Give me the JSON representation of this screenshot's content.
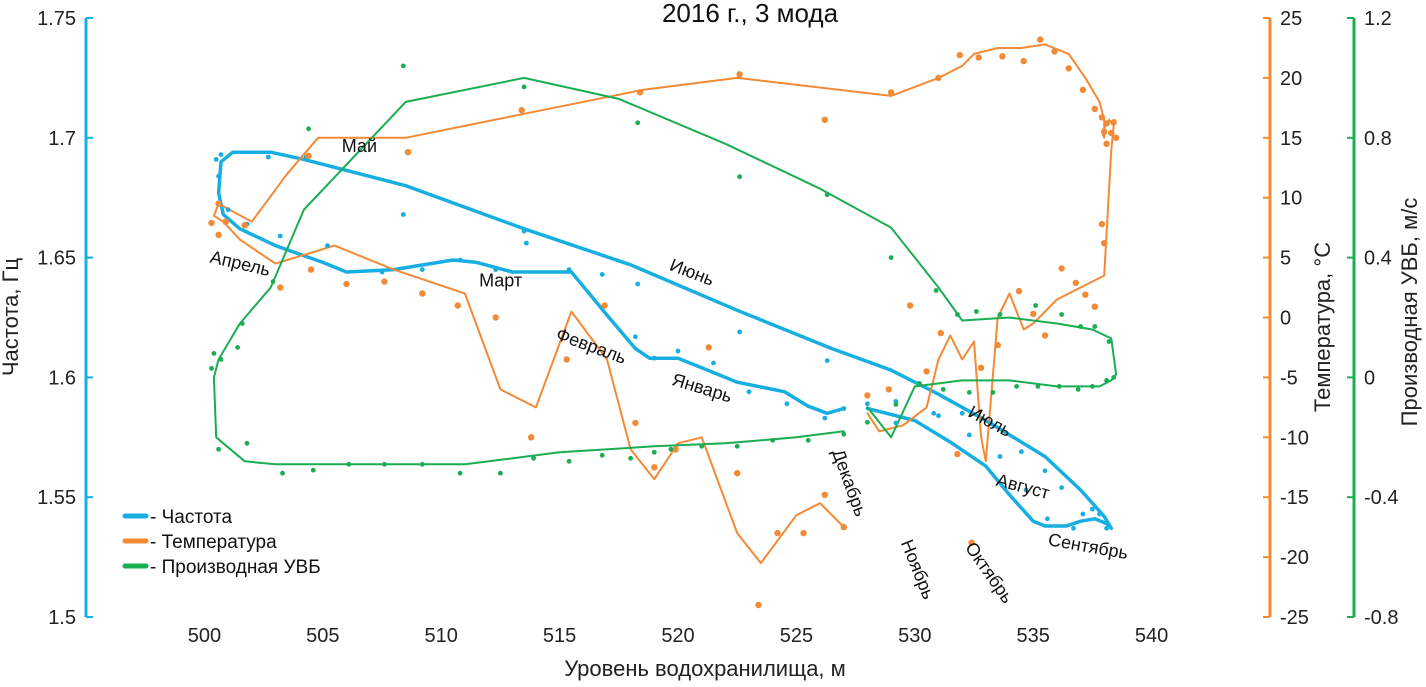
{
  "chart_data": {
    "type": "line",
    "title": "2016 г., 3 мода",
    "xlabel": "Уровень водохранилища, м",
    "xlim": [
      495,
      545
    ],
    "xticks": [
      500,
      505,
      510,
      515,
      520,
      525,
      530,
      535,
      540
    ],
    "y_axes": [
      {
        "id": "freq",
        "label": "Частота, Гц",
        "side": "left",
        "ylim": [
          1.5,
          1.75
        ],
        "ticks": [
          1.5,
          1.55,
          1.6,
          1.65,
          1.7,
          1.75
        ],
        "tick_labels": [
          "1.5",
          "1.55",
          "1.6",
          "1.65",
          "1.7",
          "1.75"
        ],
        "color": "#17aee2"
      },
      {
        "id": "temp",
        "label": "Температура, °С",
        "side": "right",
        "ylim": [
          -25,
          25
        ],
        "ticks": [
          -25,
          -20,
          -15,
          -10,
          -5,
          0,
          5,
          10,
          15,
          20,
          25
        ],
        "tick_labels": [
          "-25",
          "-20",
          "-15",
          "-10",
          "-5",
          "0",
          "5",
          "10",
          "15",
          "20",
          "25"
        ],
        "color": "#f28a36"
      },
      {
        "id": "deriv",
        "label": "Производная УВБ, м/с",
        "side": "right",
        "ylim": [
          -0.8,
          1.2
        ],
        "ticks": [
          -0.8,
          -0.4,
          0,
          0.4,
          0.8,
          1.2
        ],
        "tick_labels": [
          "-0.8",
          "-0.4",
          "0",
          "0.4",
          "0.8",
          "1.2"
        ],
        "color": "#1aad52"
      }
    ],
    "series": [
      {
        "name": "Частота",
        "axis": "freq",
        "color": "#17aee2",
        "x": [
          527.0,
          526.3,
          525.5,
          524.5,
          522.5,
          521.0,
          520.0,
          518.8,
          518.2,
          517.0,
          515.5,
          514.0,
          513.0,
          511.5,
          510.5,
          508.0,
          506.0,
          505.0,
          503.0,
          501.5,
          500.8,
          500.6,
          500.7,
          501.2,
          502.8,
          504.2,
          508.5,
          513.5,
          518.0,
          522.5,
          526.5,
          529.0,
          531.0,
          533.0,
          535.5,
          537.0,
          538.0,
          538.3,
          538.1,
          537.6,
          537.0,
          536.4,
          535.5,
          535.0,
          534.0,
          533.0,
          531.5,
          530.0,
          528.0
        ],
        "y": [
          1.587,
          1.585,
          1.588,
          1.594,
          1.598,
          1.604,
          1.608,
          1.608,
          1.612,
          1.626,
          1.644,
          1.644,
          1.644,
          1.648,
          1.649,
          1.645,
          1.644,
          1.648,
          1.655,
          1.662,
          1.668,
          1.677,
          1.69,
          1.694,
          1.694,
          1.691,
          1.68,
          1.662,
          1.647,
          1.628,
          1.612,
          1.603,
          1.593,
          1.582,
          1.567,
          1.553,
          1.542,
          1.537,
          1.539,
          1.541,
          1.54,
          1.538,
          1.538,
          1.54,
          1.551,
          1.563,
          1.573,
          1.582,
          1.587
        ]
      },
      {
        "name": "Температура",
        "axis": "temp",
        "color": "#f28a36",
        "x": [
          527.0,
          526.0,
          525.0,
          523.5,
          522.5,
          521.0,
          520.0,
          519.0,
          518.0,
          517.0,
          515.5,
          514.0,
          512.5,
          511.0,
          509.5,
          508.0,
          505.5,
          503.0,
          501.5,
          500.8,
          500.4,
          500.6,
          502.0,
          503.5,
          504.8,
          508.5,
          513.5,
          518.5,
          522.5,
          529.0,
          531.0,
          532.0,
          532.5,
          533.5,
          534.5,
          535.5,
          536.5,
          537.2,
          537.8,
          538.0,
          538.0,
          537.9,
          538.2,
          538.4,
          538.3,
          538.0,
          537.0,
          536.0,
          535.5,
          535.0,
          534.6,
          534.0,
          533.5,
          533.0,
          532.8,
          532.5,
          532.0,
          531.5,
          531.0,
          530.5,
          529.5,
          528.5,
          528.0
        ],
        "y": [
          -17.5,
          -15.5,
          -16.5,
          -20.5,
          -18.0,
          -10.0,
          -10.5,
          -13.5,
          -11.0,
          -3.5,
          0.5,
          -7.5,
          -6.0,
          2.0,
          3.0,
          4.0,
          6.0,
          4.5,
          6.5,
          8.0,
          8.5,
          9.5,
          8.0,
          12.0,
          15.0,
          15.0,
          17.0,
          19.0,
          20.0,
          18.5,
          20.0,
          21.0,
          22.0,
          22.5,
          22.5,
          22.8,
          22.0,
          20.0,
          18.0,
          16.5,
          15.0,
          15.5,
          16.5,
          16.0,
          14.0,
          3.5,
          2.5,
          1.5,
          0.5,
          -0.5,
          -1.0,
          2.0,
          0.0,
          -12.0,
          -10.0,
          -2.0,
          -3.5,
          -1.5,
          -3.5,
          -7.5,
          -9.0,
          -9.5,
          -8.0
        ]
      },
      {
        "name": "Производная УВБ",
        "axis": "deriv",
        "color": "#1aad52",
        "x": [
          527.0,
          525.0,
          522.0,
          519.0,
          515.0,
          511.0,
          507.0,
          504.0,
          503.0,
          501.7,
          500.5,
          500.4,
          500.6,
          501.5,
          502.8,
          504.2,
          508.5,
          513.5,
          517.5,
          522.0,
          526.0,
          529.0,
          531.0,
          532.0,
          534.0,
          536.0,
          537.5,
          538.3,
          538.5,
          538.3,
          537.8,
          537.0,
          536.0,
          535.0,
          534.0,
          532.0,
          530.0,
          529.0,
          528.0
        ],
        "y": [
          -0.18,
          -0.2,
          -0.22,
          -0.23,
          -0.25,
          -0.29,
          -0.29,
          -0.29,
          -0.29,
          -0.28,
          -0.2,
          0.0,
          0.06,
          0.18,
          0.3,
          0.56,
          0.92,
          1.0,
          0.93,
          0.78,
          0.63,
          0.5,
          0.3,
          0.19,
          0.2,
          0.18,
          0.16,
          0.13,
          0.01,
          -0.01,
          -0.03,
          -0.03,
          -0.03,
          -0.02,
          -0.01,
          -0.01,
          -0.03,
          -0.2,
          -0.1
        ]
      }
    ],
    "scatter": {
      "freq": {
        "x": [
          527.0,
          526.2,
          524.6,
          523.0,
          521.5,
          520.0,
          519.0,
          518.2,
          516.8,
          515.4,
          513.6,
          512.3,
          510.8,
          509.2,
          507.5,
          505.2,
          503.2,
          501.8,
          501.0,
          500.6,
          500.5,
          500.7,
          502.7,
          504.3,
          508.4,
          513.5,
          518.3,
          522.6,
          526.3,
          529.2,
          531.0,
          532.0,
          533.2,
          534.5,
          535.5,
          536.2,
          537.1,
          537.8,
          538.1,
          537.5,
          536.7,
          535.6,
          534.7,
          533.6,
          532.3,
          530.8,
          529.2,
          528.0
        ],
        "y": [
          1.587,
          1.583,
          1.589,
          1.594,
          1.606,
          1.611,
          1.608,
          1.617,
          1.643,
          1.645,
          1.656,
          1.645,
          1.649,
          1.645,
          1.644,
          1.655,
          1.659,
          1.664,
          1.67,
          1.684,
          1.691,
          1.693,
          1.692,
          1.692,
          1.668,
          1.661,
          1.639,
          1.619,
          1.607,
          1.59,
          1.584,
          1.585,
          1.581,
          1.569,
          1.561,
          1.554,
          1.543,
          1.543,
          1.537,
          1.545,
          1.537,
          1.541,
          1.553,
          1.567,
          1.576,
          1.585,
          1.581,
          1.589
        ]
      },
      "temp": {
        "x": [
          527.0,
          526.2,
          525.3,
          524.2,
          523.4,
          522.5,
          521.3,
          519.9,
          519.0,
          518.2,
          516.9,
          515.3,
          513.8,
          512.3,
          510.7,
          509.2,
          507.6,
          506.0,
          504.5,
          503.2,
          501.7,
          500.9,
          500.6,
          500.3,
          500.6,
          504.4,
          508.6,
          513.4,
          518.4,
          522.6,
          526.2,
          529.0,
          531.0,
          531.9,
          532.7,
          533.7,
          534.6,
          535.3,
          535.9,
          536.5,
          537.1,
          537.6,
          537.9,
          538.1,
          538.3,
          538.5,
          538.4,
          538.0,
          538.1,
          538.0,
          537.9,
          537.6,
          537.2,
          536.8,
          536.2,
          535.5,
          535.0,
          534.4,
          533.5,
          532.8,
          532.4,
          531.8,
          531.1,
          530.5,
          529.8,
          528.9,
          528.0
        ],
        "y": [
          -17.5,
          -14.8,
          -18.0,
          -18.0,
          -24.0,
          -13.0,
          -2.5,
          -11.0,
          -12.5,
          -8.8,
          1.0,
          -3.5,
          -10.0,
          0.0,
          1.0,
          2.0,
          3.0,
          2.8,
          4.0,
          2.5,
          7.7,
          8.0,
          9.5,
          7.9,
          6.9,
          13.5,
          13.8,
          17.3,
          18.8,
          20.3,
          16.5,
          18.8,
          20.0,
          21.9,
          21.7,
          21.8,
          21.4,
          23.2,
          22.2,
          20.8,
          19.0,
          17.4,
          16.7,
          16.2,
          15.4,
          15.0,
          16.3,
          15.5,
          14.5,
          6.2,
          7.8,
          0.9,
          1.9,
          2.9,
          4.1,
          -1.5,
          0.3,
          2.2,
          -2.3,
          -4.2,
          -18.8,
          -11.4,
          -1.3,
          -4.5,
          1.0,
          -6.0,
          -6.5
        ]
      },
      "deriv": {
        "x": [
          527.0,
          525.5,
          524.0,
          522.5,
          521.0,
          519.7,
          519.0,
          518.0,
          516.8,
          515.4,
          513.9,
          512.5,
          510.8,
          509.2,
          507.6,
          506.1,
          504.6,
          503.3,
          501.8,
          500.6,
          500.4,
          500.3,
          500.7,
          501.4,
          501.6,
          502.9,
          504.4,
          508.4,
          513.5,
          518.3,
          522.6,
          526.3,
          529.0,
          530.9,
          531.8,
          532.6,
          533.6,
          535.1,
          536.2,
          537.0,
          537.6,
          538.2,
          538.4,
          538.1,
          537.5,
          536.9,
          536.1,
          535.2,
          534.3,
          533.3,
          532.3,
          531.2,
          530.2,
          529.2,
          528.0
        ],
        "y": [
          -0.19,
          -0.21,
          -0.21,
          -0.23,
          -0.23,
          -0.24,
          -0.25,
          -0.27,
          -0.26,
          -0.28,
          -0.27,
          -0.32,
          -0.32,
          -0.29,
          -0.29,
          -0.29,
          -0.31,
          -0.32,
          -0.22,
          -0.24,
          0.08,
          0.03,
          0.06,
          0.1,
          0.18,
          0.32,
          0.83,
          1.04,
          0.97,
          0.85,
          0.67,
          0.61,
          0.4,
          0.29,
          0.21,
          0.22,
          0.21,
          0.24,
          0.21,
          0.17,
          0.17,
          0.12,
          0.0,
          -0.01,
          -0.03,
          -0.04,
          -0.03,
          -0.03,
          -0.03,
          -0.05,
          -0.05,
          -0.04,
          -0.02,
          -0.09,
          -0.15
        ]
      }
    },
    "annotations": [
      {
        "text": "Май",
        "x": 505.8,
        "y": 1.694
      },
      {
        "text": "Апрель",
        "x": 500.2,
        "y": 1.648
      },
      {
        "text": "Март",
        "x": 511.6,
        "y": 1.638
      },
      {
        "text": "Июнь",
        "x": 519.6,
        "y": 1.645
      },
      {
        "text": "Февраль",
        "x": 514.8,
        "y": 1.616
      },
      {
        "text": "Январь",
        "x": 519.7,
        "y": 1.597
      },
      {
        "text": "Декабрь",
        "x": 526.5,
        "y": 1.569
      },
      {
        "text": "Июль",
        "x": 532.2,
        "y": 1.584
      },
      {
        "text": "Август",
        "x": 533.4,
        "y": 1.555
      },
      {
        "text": "Сентябрь",
        "x": 535.6,
        "y": 1.53
      },
      {
        "text": "Ноябрь",
        "x": 529.4,
        "y": 1.531
      },
      {
        "text": "Октябрь",
        "x": 532.1,
        "y": 1.529
      }
    ],
    "legend": {
      "placement": "bottom-left",
      "items": [
        {
          "label": "- Частота",
          "color": "#17aee2"
        },
        {
          "label": "- Температура",
          "color": "#f28a36"
        },
        {
          "label": "- Производная УВБ",
          "color": "#1aad52"
        }
      ]
    }
  }
}
